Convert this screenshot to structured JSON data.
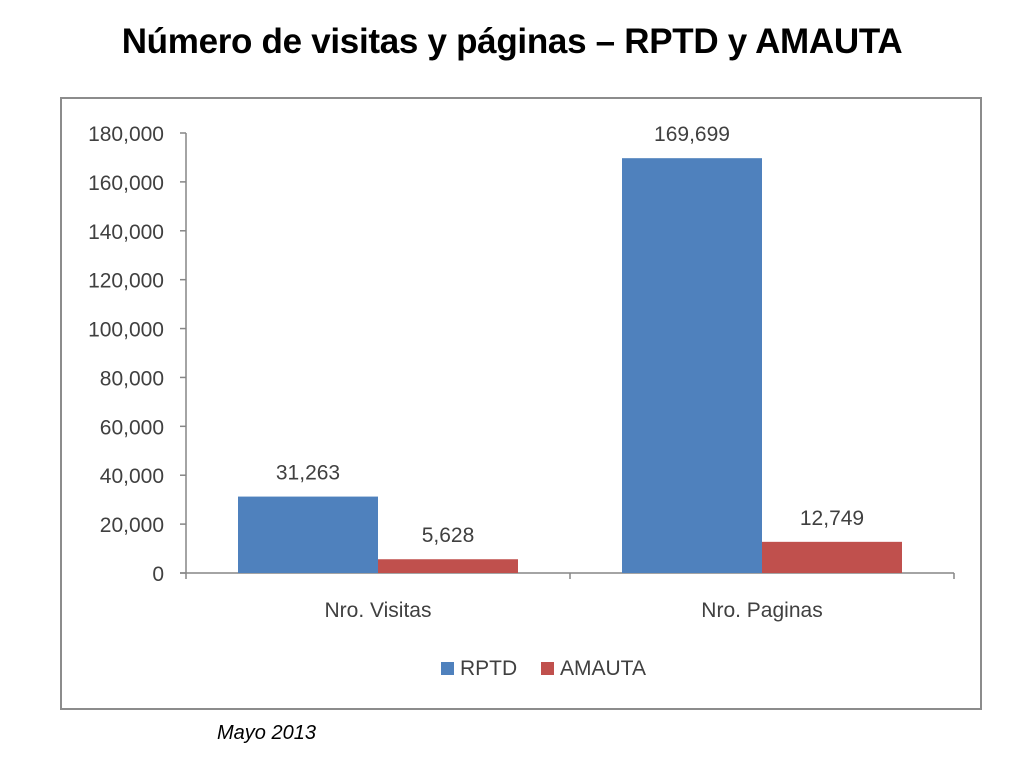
{
  "page": {
    "title": "Número de visitas y páginas – RPTD y AMAUTA",
    "footnote": "Mayo 2013"
  },
  "chart_data": {
    "type": "bar",
    "title": "",
    "xlabel": "",
    "ylabel": "",
    "categories": [
      "Nro. Visitas",
      "Nro. Paginas"
    ],
    "series": [
      {
        "name": "RPTD",
        "color": "#4f81bd",
        "values": [
          31263,
          169699
        ],
        "labels": [
          "31,263",
          "169,699"
        ]
      },
      {
        "name": "AMAUTA",
        "color": "#c0504d",
        "values": [
          5628,
          12749
        ],
        "labels": [
          "5,628",
          "12,749"
        ]
      }
    ],
    "ylim": [
      0,
      180000
    ],
    "y_ticks": [
      0,
      20000,
      40000,
      60000,
      80000,
      100000,
      120000,
      140000,
      160000,
      180000
    ],
    "y_tick_labels": [
      "0",
      "20,000",
      "40,000",
      "60,000",
      "80,000",
      "100,000",
      "120,000",
      "140,000",
      "160,000",
      "180,000"
    ],
    "grid": false,
    "legend_position": "bottom"
  }
}
